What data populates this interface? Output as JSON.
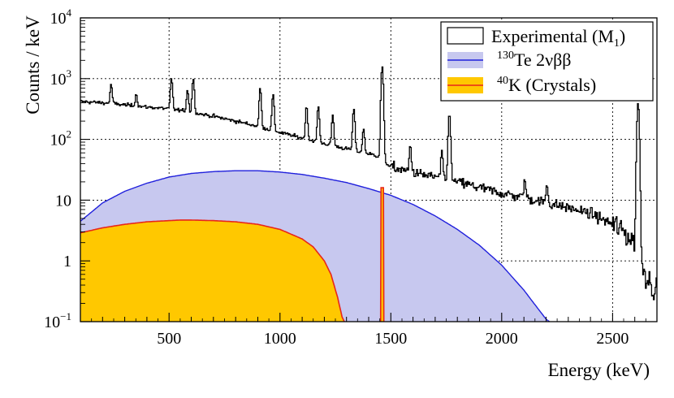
{
  "chart_data": {
    "type": "line",
    "title": "",
    "xlabel": "Energy (keV)",
    "ylabel": "Counts / keV",
    "xlim": [
      100,
      2700
    ],
    "ylim": [
      0.1,
      10000
    ],
    "yscale": "log",
    "grid": true,
    "legend_position": "top-right",
    "x_ticks": [
      {
        "value": 500,
        "label": "500"
      },
      {
        "value": 1000,
        "label": "1000"
      },
      {
        "value": 1500,
        "label": "1500"
      },
      {
        "value": 2000,
        "label": "2000"
      },
      {
        "value": 2500,
        "label": "2500"
      }
    ],
    "y_ticks": [
      {
        "value": 0.1,
        "base": "10",
        "exp": "−1",
        "label": ""
      },
      {
        "value": 1,
        "base": "",
        "exp": "",
        "label": "1"
      },
      {
        "value": 10,
        "base": "",
        "exp": "",
        "label": "10"
      },
      {
        "value": 100,
        "base": "10",
        "exp": "2",
        "label": ""
      },
      {
        "value": 1000,
        "base": "10",
        "exp": "3",
        "label": ""
      },
      {
        "value": 10000,
        "base": "10",
        "exp": "4",
        "label": ""
      }
    ],
    "series": [
      {
        "name": "Experimental (M1)",
        "legend_text": "Experimental (M",
        "legend_sub": "1",
        "legend_close": ")",
        "style": "step-line",
        "color": "#000000",
        "continuum": {
          "x": [
            100,
            200,
            300,
            400,
            500,
            600,
            700,
            800,
            900,
            1000,
            1100,
            1200,
            1300,
            1400,
            1450,
            1500,
            1600,
            1700,
            1800,
            1900,
            2000,
            2100,
            2200,
            2300,
            2400,
            2500,
            2550,
            2600,
            2650,
            2700
          ],
          "y": [
            420,
            400,
            370,
            340,
            320,
            280,
            240,
            200,
            165,
            130,
            105,
            85,
            70,
            58,
            52,
            35,
            28,
            24,
            20,
            16,
            13,
            11,
            9,
            7.5,
            6,
            4,
            3,
            2,
            0.6,
            0.3
          ]
        },
        "peaks": [
          {
            "x": 239,
            "y": 800
          },
          {
            "x": 352,
            "y": 560
          },
          {
            "x": 511,
            "y": 1000
          },
          {
            "x": 583,
            "y": 650
          },
          {
            "x": 609,
            "y": 1000
          },
          {
            "x": 911,
            "y": 700
          },
          {
            "x": 969,
            "y": 550
          },
          {
            "x": 1120,
            "y": 350
          },
          {
            "x": 1173,
            "y": 350
          },
          {
            "x": 1238,
            "y": 250
          },
          {
            "x": 1333,
            "y": 320
          },
          {
            "x": 1377,
            "y": 150
          },
          {
            "x": 1461,
            "y": 1600
          },
          {
            "x": 1588,
            "y": 80
          },
          {
            "x": 1730,
            "y": 60
          },
          {
            "x": 1764,
            "y": 270
          },
          {
            "x": 2104,
            "y": 22
          },
          {
            "x": 2204,
            "y": 18
          },
          {
            "x": 2615,
            "y": 400
          }
        ]
      },
      {
        "name": "130Te 2νββ",
        "legend_sup": "130",
        "legend_text": "Te 2νββ",
        "style": "filled",
        "color": "#1f1fdc",
        "fill": "#c7c8ef",
        "x": [
          100,
          200,
          300,
          400,
          500,
          600,
          700,
          800,
          900,
          1000,
          1100,
          1200,
          1300,
          1400,
          1500,
          1600,
          1700,
          1800,
          1900,
          2000,
          2100,
          2150,
          2200,
          2215
        ],
        "y": [
          4.5,
          9,
          14,
          19,
          24,
          27.5,
          29.5,
          30.5,
          30.5,
          29,
          26.5,
          23,
          19.5,
          15.5,
          12,
          8.5,
          5.5,
          3.3,
          1.8,
          0.85,
          0.33,
          0.19,
          0.11,
          0.1
        ]
      },
      {
        "name": "40K (Crystals)",
        "legend_sup": "40",
        "legend_text": "K (Crystals)",
        "style": "filled",
        "color": "#e8261a",
        "fill": "#ffc800",
        "x": [
          100,
          200,
          300,
          400,
          500,
          550,
          600,
          700,
          800,
          900,
          1000,
          1100,
          1150,
          1200,
          1230,
          1260,
          1280,
          1290
        ],
        "y": [
          2.9,
          3.5,
          4.0,
          4.4,
          4.6,
          4.7,
          4.7,
          4.6,
          4.4,
          4.0,
          3.3,
          2.3,
          1.7,
          1.0,
          0.6,
          0.25,
          0.12,
          0.1
        ],
        "gamma_line": {
          "x": 1461,
          "y": 16
        }
      }
    ]
  },
  "colors": {
    "background": "#ffffff",
    "grid": "#000000"
  }
}
